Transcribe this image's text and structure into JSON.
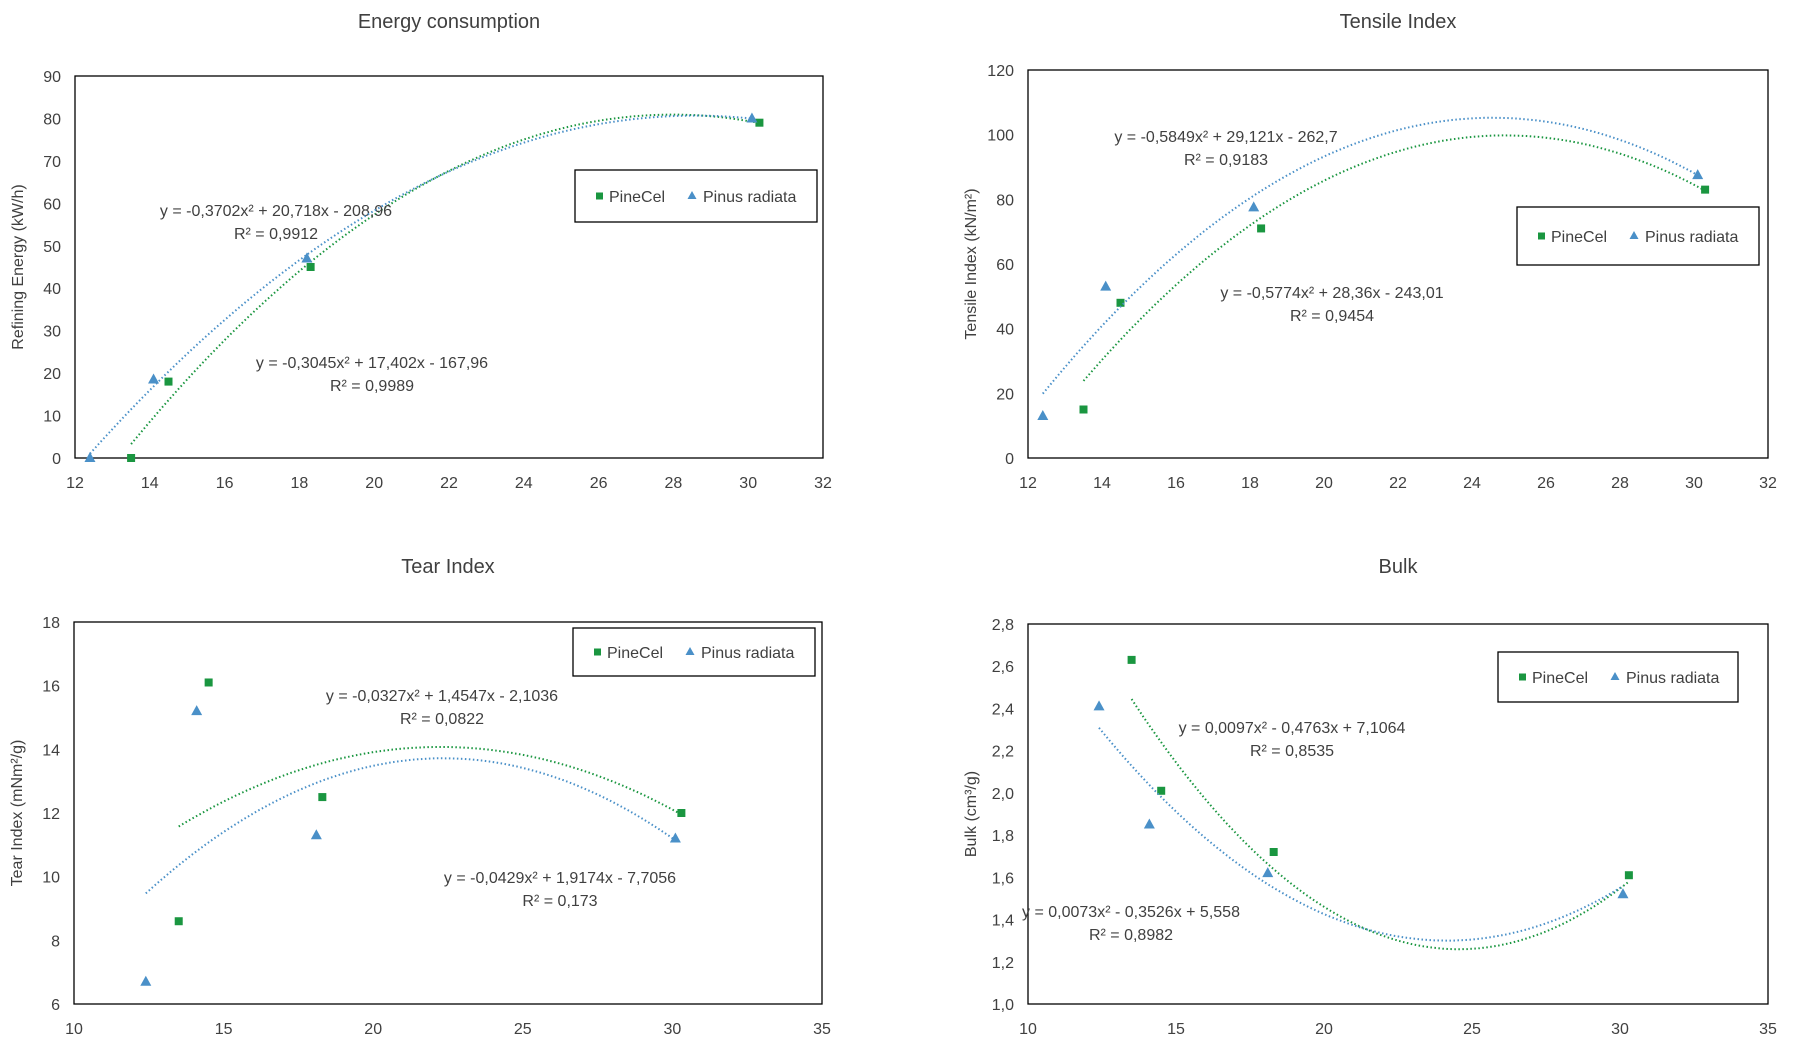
{
  "colors": {
    "pinecel": "#1a9640",
    "pinus": "#4a90c8",
    "text": "#404040",
    "axis": "#000000"
  },
  "chart_data": [
    {
      "type": "scatter",
      "title": "Energy consumption",
      "xlabel": "",
      "ylabel": "Refining Energy (kW/h)",
      "xlim": [
        12,
        32
      ],
      "xticks": [
        12,
        14,
        16,
        18,
        20,
        22,
        24,
        26,
        28,
        30,
        32
      ],
      "ylim": [
        0,
        90
      ],
      "yticks": [
        0,
        10,
        20,
        30,
        40,
        50,
        60,
        70,
        80,
        90
      ],
      "legend_position": "right",
      "series": [
        {
          "name": "PineCel",
          "marker": "square",
          "color": "#1a9640",
          "x": [
            13.5,
            14.5,
            18.3,
            30.3
          ],
          "y": [
            0,
            18,
            45,
            79
          ],
          "trend": {
            "a": -0.3702,
            "b": 20.718,
            "c": -208.96,
            "from": 13.5,
            "to": 30.3
          },
          "equation": "y = -0,3702x² + 20,718x - 208,96",
          "r2": "R² = 0,9912"
        },
        {
          "name": "Pinus radiata",
          "marker": "triangle",
          "color": "#4a90c8",
          "x": [
            12.4,
            14.1,
            18.2,
            30.1
          ],
          "y": [
            0,
            18.5,
            47,
            80
          ],
          "trend": {
            "a": -0.3045,
            "b": 17.402,
            "c": -167.96,
            "from": 12.4,
            "to": 30.1
          },
          "equation": "y = -0,3045x² + 17,402x - 167,96",
          "r2": "R² = 0,9989"
        }
      ]
    },
    {
      "type": "scatter",
      "title": "Tensile Index",
      "xlabel": "",
      "ylabel": "Tensile Index (kN/m²)",
      "xlim": [
        12,
        32
      ],
      "xticks": [
        12,
        14,
        16,
        18,
        20,
        22,
        24,
        26,
        28,
        30,
        32
      ],
      "ylim": [
        0,
        120
      ],
      "yticks": [
        0,
        20,
        40,
        60,
        80,
        100,
        120
      ],
      "legend_position": "right",
      "series": [
        {
          "name": "PineCel",
          "marker": "square",
          "color": "#1a9640",
          "x": [
            13.5,
            14.5,
            18.3,
            30.3
          ],
          "y": [
            15,
            48,
            71,
            83
          ],
          "trend": {
            "a": -0.5849,
            "b": 29.121,
            "c": -262.7,
            "from": 13.5,
            "to": 30.3
          },
          "equation": "y = -0,5849x² + 29,121x - 262,7",
          "r2": "R² = 0,9183"
        },
        {
          "name": "Pinus radiata",
          "marker": "triangle",
          "color": "#4a90c8",
          "x": [
            12.4,
            14.1,
            18.1,
            30.1
          ],
          "y": [
            13,
            53,
            77.5,
            87.5
          ],
          "trend": {
            "a": -0.5774,
            "b": 28.36,
            "c": -243.01,
            "from": 12.4,
            "to": 30.1
          },
          "equation": "y = -0,5774x² + 28,36x - 243,01",
          "r2": "R² = 0,9454"
        }
      ]
    },
    {
      "type": "scatter",
      "title": "Tear Index",
      "xlabel": "",
      "ylabel": "Tear Index (mNm²/g)",
      "xlim": [
        10,
        35
      ],
      "xticks": [
        10,
        15,
        20,
        25,
        30,
        35
      ],
      "ylim": [
        6,
        18
      ],
      "yticks": [
        6,
        8,
        10,
        12,
        14,
        16,
        18
      ],
      "legend_position": "top-right",
      "series": [
        {
          "name": "PineCel",
          "marker": "square",
          "color": "#1a9640",
          "x": [
            13.5,
            14.5,
            18.3,
            30.3
          ],
          "y": [
            8.6,
            16.1,
            12.5,
            12
          ],
          "trend": {
            "a": -0.0327,
            "b": 1.4547,
            "c": -2.1036,
            "from": 13.5,
            "to": 30.3
          },
          "equation": "y = -0,0327x² + 1,4547x - 2,1036",
          "r2": "R² = 0,0822"
        },
        {
          "name": "Pinus radiata",
          "marker": "triangle",
          "color": "#4a90c8",
          "x": [
            12.4,
            14.1,
            18.1,
            30.1
          ],
          "y": [
            6.7,
            15.2,
            11.3,
            11.2
          ],
          "trend": {
            "a": -0.0429,
            "b": 1.9174,
            "c": -7.7056,
            "from": 12.4,
            "to": 30.1
          },
          "equation": "y = -0,0429x² + 1,9174x - 7,7056",
          "r2": "R² = 0,173"
        }
      ]
    },
    {
      "type": "scatter",
      "title": "Bulk",
      "xlabel": "",
      "ylabel": "Bulk (cm³/g)",
      "xlim": [
        10,
        35
      ],
      "xticks": [
        10,
        15,
        20,
        25,
        30,
        35
      ],
      "ylim": [
        1.0,
        2.8
      ],
      "yticks": [
        "1,0",
        "1,2",
        "1,4",
        "1,6",
        "1,8",
        "2,0",
        "2,2",
        "2,4",
        "2,6",
        "2,8"
      ],
      "legend_position": "top-right",
      "series": [
        {
          "name": "PineCel",
          "marker": "square",
          "color": "#1a9640",
          "x": [
            13.5,
            14.5,
            18.3,
            30.3
          ],
          "y": [
            2.63,
            2.01,
            1.72,
            1.61
          ],
          "trend": {
            "a": 0.0097,
            "b": -0.4763,
            "c": 7.1064,
            "from": 13.5,
            "to": 30.3
          },
          "equation": "y = 0,0097x² - 0,4763x + 7,1064",
          "r2": "R² = 0,8535"
        },
        {
          "name": "Pinus radiata",
          "marker": "triangle",
          "color": "#4a90c8",
          "x": [
            12.4,
            14.1,
            18.1,
            30.1
          ],
          "y": [
            2.41,
            1.85,
            1.62,
            1.52
          ],
          "trend": {
            "a": 0.0073,
            "b": -0.3526,
            "c": 5.558,
            "from": 12.4,
            "to": 30.1
          },
          "equation": "y = 0,0073x² - 0,3526x + 5,558",
          "r2": "R² = 0,8982"
        }
      ]
    }
  ]
}
